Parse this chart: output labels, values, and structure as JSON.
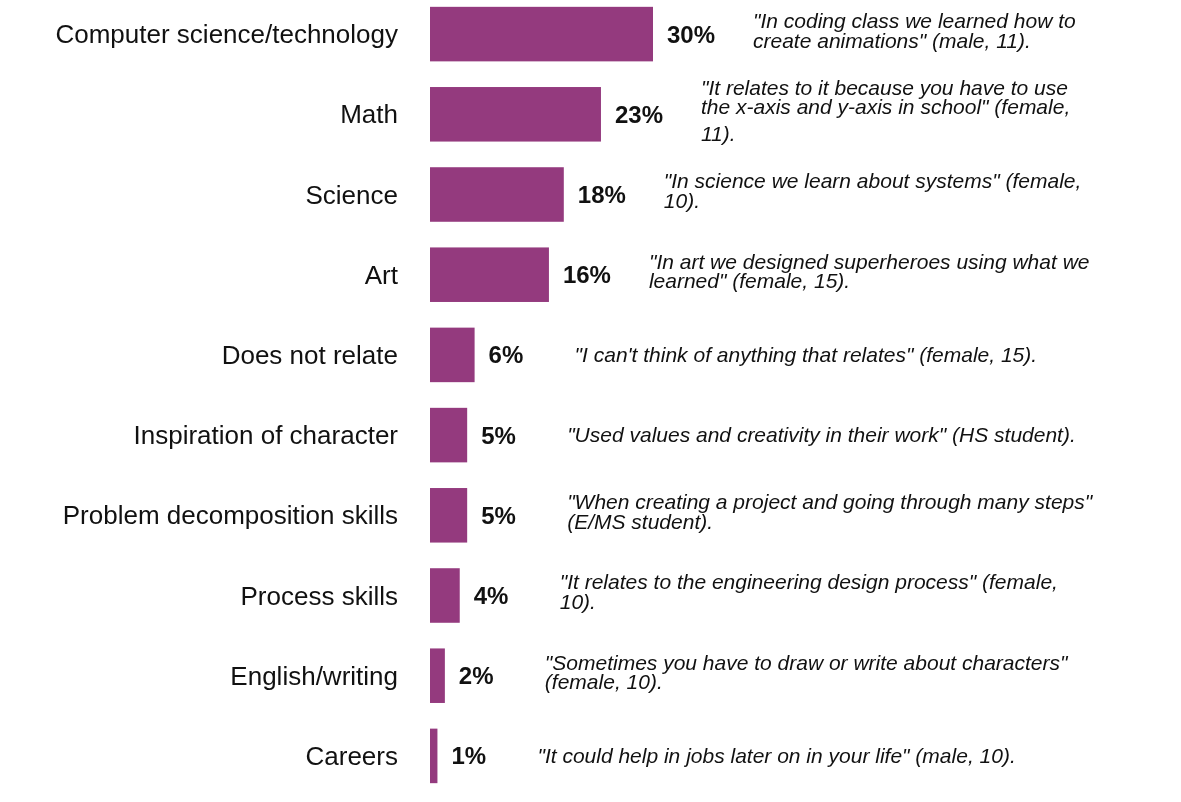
{
  "chart_data": {
    "type": "bar",
    "orientation": "horizontal",
    "data_labels": true,
    "categories": [
      "Computer science/technology",
      "Math",
      "Science",
      "Art",
      "Does not relate",
      "Inspiration of character",
      "Problem decomposition skills",
      "Process skills",
      "English/writing",
      "Careers"
    ],
    "values": [
      30,
      23,
      18,
      16,
      6,
      5,
      5,
      4,
      2,
      1
    ],
    "value_labels": [
      "30%",
      "23%",
      "18%",
      "16%",
      "6%",
      "5%",
      "5%",
      "4%",
      "2%",
      "1%"
    ],
    "color": "#943a7e",
    "annotations": [
      "\"In coding class we learned how to create animations\" (male, 11).",
      "\"It relates to it because you have to use the x-axis and y-axis in school\" (female, 11).",
      "\"In science we learn about systems\" (female, 10).",
      "\"In art we designed superheroes using what we learned\" (female, 15).",
      "\"I can't think of anything that relates\" (female, 15).",
      "\"Used values and creativity in their work\" (HS student).",
      "\"When creating a project and going through many steps\" (E/MS student).",
      "\"It relates to the engineering design process\" (female, 10).",
      "\"Sometimes you have to draw or write about characters\" (female, 10).",
      "\"It could help in jobs later on in your life\" (male, 10)."
    ]
  }
}
